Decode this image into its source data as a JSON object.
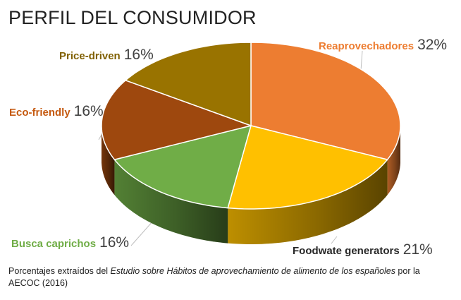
{
  "title": "PERFIL DEL CONSUMIDOR",
  "caption": {
    "before": "Porcentajes extraídos del ",
    "italic": "Estudio sobre Hábitos de aprovechamiento de alimento de los españoles",
    "after": " por la AECOC (2016)"
  },
  "chart_data": {
    "type": "pie",
    "style": "3d",
    "title": "PERFIL DEL CONSUMIDOR",
    "slices": [
      {
        "label": "Reaprovechadores",
        "value": 32,
        "value_label": "32%",
        "color": "#ED7D31"
      },
      {
        "label": "Foodwate generators",
        "value": 21,
        "value_label": "21%",
        "color": "#FFC000"
      },
      {
        "label": "Busca caprichos",
        "value": 16,
        "value_label": "16%",
        "color": "#70AD47"
      },
      {
        "label": "Eco-friendly",
        "value": 16,
        "value_label": "16%",
        "color": "#9E480E"
      },
      {
        "label": "Price-driven",
        "value": 16,
        "value_label": "16%",
        "color": "#997300"
      }
    ],
    "label_colors": {
      "Reaprovechadores": "#ED7D31",
      "Foodwate generators": "#262626",
      "Busca caprichos": "#70AD47",
      "Eco-friendly": "#C55A11",
      "Price-driven": "#806000"
    }
  }
}
